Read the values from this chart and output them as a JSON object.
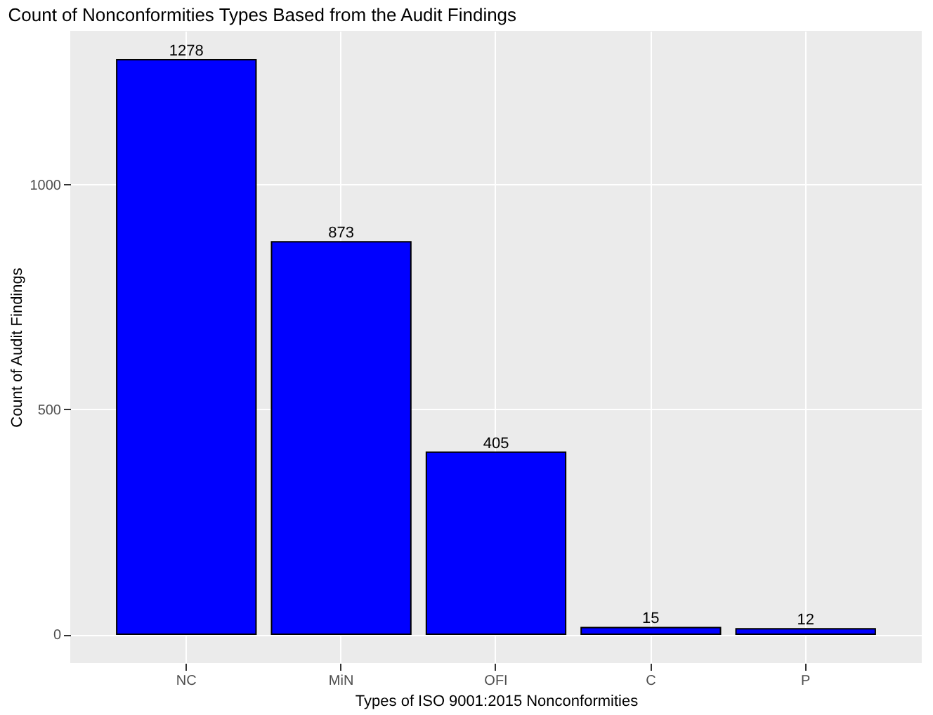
{
  "chart_data": {
    "type": "bar",
    "title": "Count of Nonconformities Types Based from the Audit Findings",
    "xlabel": "Types of ISO 9001:2015 Nonconformities",
    "ylabel": "Count of Audit Findings",
    "categories": [
      "NC",
      "MiN",
      "OFI",
      "C",
      "P"
    ],
    "values": [
      1278,
      873,
      405,
      15,
      12
    ],
    "color": "#0000ff",
    "ylim": [
      -64,
      1342
    ],
    "yticks": [
      0,
      500,
      1000
    ],
    "grid": true,
    "data_labels": true
  }
}
